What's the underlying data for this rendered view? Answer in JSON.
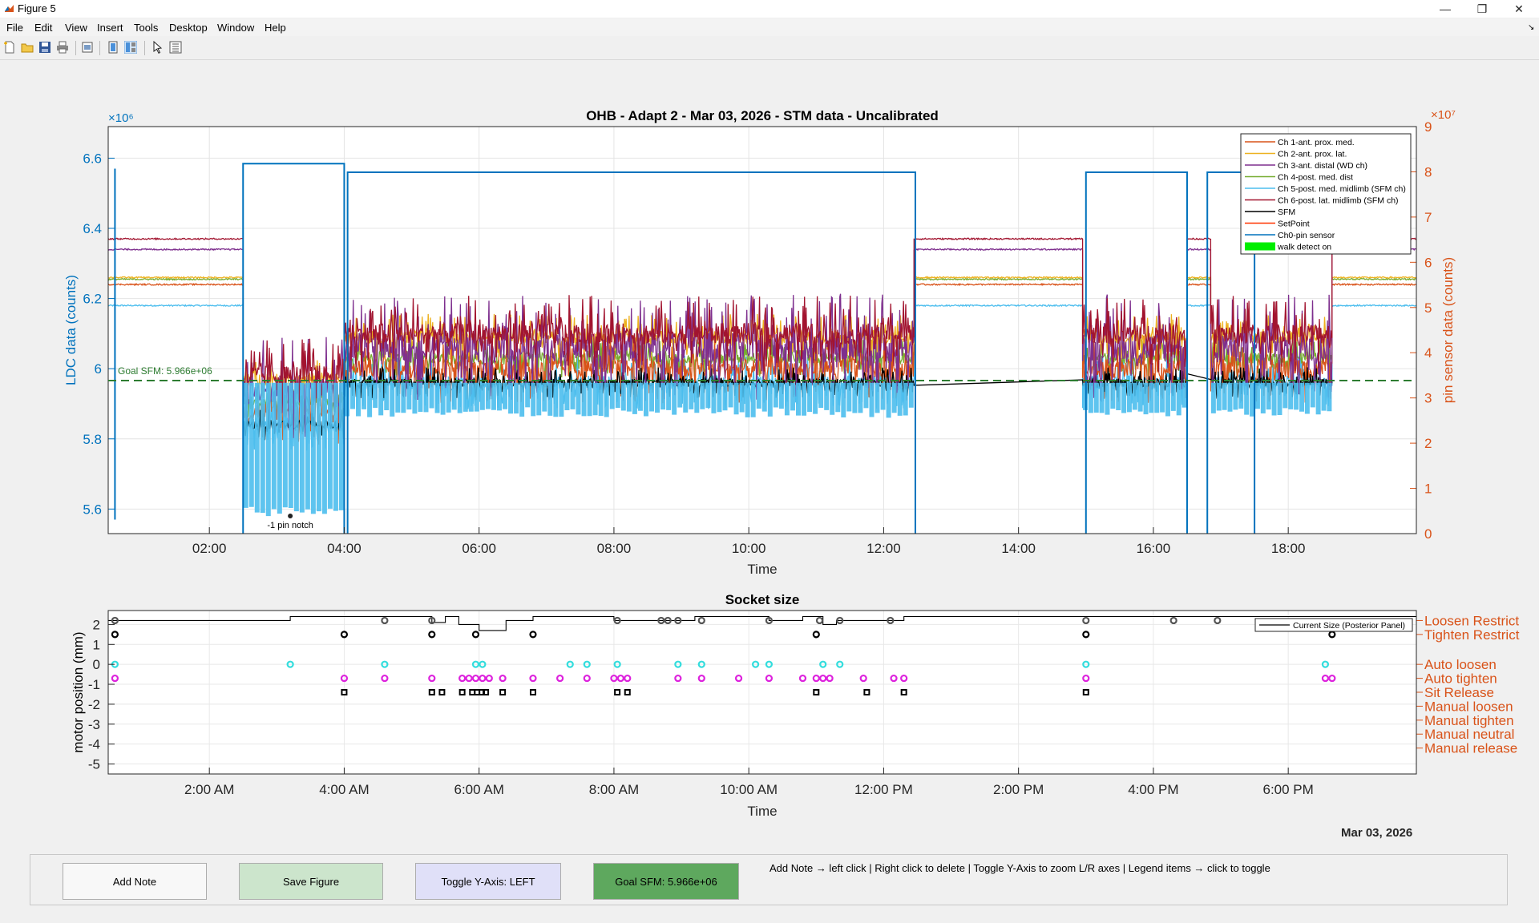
{
  "window": {
    "title": "Figure 5",
    "buttons": [
      "minimize",
      "restore",
      "close"
    ]
  },
  "menu": [
    "File",
    "Edit",
    "View",
    "Insert",
    "Tools",
    "Desktop",
    "Window",
    "Help"
  ],
  "toolbar_icons": [
    "new-figure-icon",
    "open-icon",
    "save-icon",
    "print-icon",
    "print-preview-icon",
    "hide-plot-tools-icon",
    "show-plot-tools-icon",
    "edit-plot-icon",
    "property-inspector-icon"
  ],
  "colors": {
    "ch1": "#d95319",
    "ch2": "#edb120",
    "ch3": "#7e2f8e",
    "ch4": "#77ac30",
    "ch5": "#4dbeee",
    "ch6": "#a2142f",
    "sfm": "#000000",
    "setpoint": "#ff3300",
    "ch0": "#0072bd",
    "walk": "#00ee00",
    "goal": "#2e7d32",
    "left_axis": "#0072bd",
    "right_axis": "#d95319",
    "cyan_marker": "#33dddd",
    "magenta_marker": "#dd22dd"
  },
  "chart_data": [
    {
      "type": "line",
      "title": "OHB - Adapt 2 - Mar 03, 2026 - STM data - Uncalibrated",
      "xlabel": "Time",
      "ylabel": "LDC data (counts)",
      "ylabel_right": "pin sensor data (counts)",
      "y_exponent": "×10⁶",
      "y_exponent_right": "×10⁷",
      "xlim": [
        0.5,
        19.9
      ],
      "ylim": [
        5.53,
        6.69
      ],
      "ylim_right": [
        0,
        9
      ],
      "x_ticks": [
        2,
        4,
        6,
        8,
        10,
        12,
        14,
        16,
        18
      ],
      "x_tick_labels": [
        "02:00",
        "04:00",
        "06:00",
        "08:00",
        "10:00",
        "12:00",
        "14:00",
        "16:00",
        "18:00"
      ],
      "y_ticks": [
        5.6,
        5.8,
        6,
        6.2,
        6.4,
        6.6
      ],
      "y_tick_labels": [
        "5.6",
        "5.8",
        "6",
        "6.2",
        "6.4",
        "6.6"
      ],
      "y_ticks_right": [
        0,
        1,
        2,
        3,
        4,
        5,
        6,
        7,
        8,
        9
      ],
      "grid": true,
      "legend_position": "top-right",
      "goal_line": {
        "value": 5.966,
        "label": "Goal SFM: 5.966e+06"
      },
      "annotation": {
        "text": "-1 pin notch",
        "x": 3.2
      },
      "legend": [
        "Ch 1-ant. prox. med.",
        "Ch 2-ant. prox. lat.",
        "Ch 3-ant. distal (WD ch)",
        "Ch 4-post. med. dist",
        "Ch 5-post. med. midlimb (SFM ch)",
        "Ch 6-post. lat. midlimb (SFM ch)",
        "SFM",
        "SetPoint",
        "Ch0-pin sensor",
        "walk detect on"
      ],
      "series": [
        {
          "name": "Ch 1-ant. prox. med.",
          "rest": 6.24,
          "active": 6.0,
          "spread": 0.09
        },
        {
          "name": "Ch 2-ant. prox. lat.",
          "rest": 6.26,
          "active": 6.09,
          "spread": 0.06
        },
        {
          "name": "Ch 3-ant. distal (WD ch)",
          "rest": 6.34,
          "active": 6.06,
          "spread": 0.14
        },
        {
          "name": "Ch 4-post. med. dist",
          "rest": 6.255,
          "active": 6.03,
          "spread": 0.05
        },
        {
          "name": "Ch 5-post. med. midlimb (SFM ch)",
          "rest": 6.18,
          "active": 5.96,
          "spread": 0.07
        },
        {
          "name": "Ch 6-post. lat. midlimb (SFM ch)",
          "rest": 6.37,
          "active": 6.1,
          "spread": 0.1
        },
        {
          "name": "SFM",
          "rest": null,
          "active": 5.96,
          "spread": 0.04
        },
        {
          "name": "Ch0-pin sensor",
          "levels_right": [
            {
              "x0": 2.5,
              "x1": 4.0,
              "y": 8.18
            },
            {
              "x0": 4.05,
              "x1": 12.47,
              "y": 7.99
            },
            {
              "x0": 15.0,
              "x1": 16.5,
              "y": 7.99
            },
            {
              "x0": 16.8,
              "x1": 17.5,
              "y": 7.99
            }
          ]
        }
      ],
      "segments": [
        {
          "x0": 0.5,
          "x1": 2.5,
          "state": "rest"
        },
        {
          "x0": 2.5,
          "x1": 4.0,
          "state": "active_low"
        },
        {
          "x0": 4.0,
          "x1": 12.45,
          "state": "active"
        },
        {
          "x0": 12.45,
          "x1": 14.95,
          "state": "rest"
        },
        {
          "x0": 14.95,
          "x1": 16.5,
          "state": "active"
        },
        {
          "x0": 16.5,
          "x1": 16.85,
          "state": "rest"
        },
        {
          "x0": 16.85,
          "x1": 18.65,
          "state": "active"
        },
        {
          "x0": 18.65,
          "x1": 19.9,
          "state": "rest"
        }
      ]
    },
    {
      "type": "scatter",
      "title": "Socket size",
      "xlabel": "Time",
      "ylabel": "motor position (mm)",
      "xlim": [
        0.5,
        19.9
      ],
      "ylim": [
        -5.5,
        2.7
      ],
      "x_ticks": [
        2,
        4,
        6,
        8,
        10,
        12,
        14,
        16,
        18
      ],
      "x_tick_labels": [
        "2:00 AM",
        "4:00 AM",
        "6:00 AM",
        "8:00 AM",
        "10:00 AM",
        "12:00 PM",
        "2:00 PM",
        "4:00 PM",
        "6:00 PM"
      ],
      "y_ticks": [
        2,
        1,
        0,
        -1,
        -2,
        -3,
        -4,
        -5
      ],
      "y_tick_labels": [
        "2",
        "1",
        "0",
        "-1",
        "-2",
        "-3",
        "-4",
        "-5"
      ],
      "right_labels": [
        {
          "y": 2.2,
          "text": "Loosen Restrict"
        },
        {
          "y": 1.5,
          "text": "Tighten Restrict"
        },
        {
          "y": 0,
          "text": "Auto loosen"
        },
        {
          "y": -0.7,
          "text": "Auto tighten"
        },
        {
          "y": -1.4,
          "text": "Sit Release"
        },
        {
          "y": -2.1,
          "text": "Manual loosen"
        },
        {
          "y": -2.8,
          "text": "Manual tighten"
        },
        {
          "y": -3.5,
          "text": "Manual neutral"
        },
        {
          "y": -4.2,
          "text": "Manual release"
        }
      ],
      "legend": [
        "Current Size (Posterior Panel)"
      ],
      "current_size": [
        [
          0.5,
          2.2
        ],
        [
          3.2,
          2.2
        ],
        [
          3.2,
          2.4
        ],
        [
          5.3,
          2.4
        ],
        [
          5.3,
          2.1
        ],
        [
          5.5,
          2.1
        ],
        [
          5.5,
          2.4
        ],
        [
          5.7,
          2.4
        ],
        [
          5.7,
          2.0
        ],
        [
          6.0,
          2.0
        ],
        [
          6.0,
          1.7
        ],
        [
          6.4,
          1.7
        ],
        [
          6.4,
          2.2
        ],
        [
          6.8,
          2.2
        ],
        [
          6.8,
          2.4
        ],
        [
          8.0,
          2.4
        ],
        [
          8.0,
          2.2
        ],
        [
          9.2,
          2.2
        ],
        [
          9.2,
          2.4
        ],
        [
          10.3,
          2.4
        ],
        [
          10.3,
          2.2
        ],
        [
          10.8,
          2.2
        ],
        [
          10.8,
          2.4
        ],
        [
          11.1,
          2.4
        ],
        [
          11.1,
          2.0
        ],
        [
          11.3,
          2.0
        ],
        [
          11.3,
          2.2
        ],
        [
          12.3,
          2.2
        ],
        [
          12.3,
          2.4
        ],
        [
          19.9,
          2.4
        ]
      ],
      "loosen_restrict": [
        0.6,
        4.6,
        5.3,
        8.05,
        8.7,
        8.8,
        8.95,
        9.3,
        10.3,
        11.05,
        11.35,
        12.1,
        15.0,
        16.3,
        16.95
      ],
      "tighten_restrict": [
        0.6,
        4.0,
        5.3,
        5.95,
        6.8,
        11.0,
        15.0,
        18.65
      ],
      "auto_loosen": [
        0.6,
        3.2,
        4.6,
        5.95,
        6.05,
        7.35,
        7.6,
        8.05,
        8.95,
        9.3,
        10.1,
        10.3,
        11.1,
        11.35,
        15.0,
        18.55
      ],
      "auto_tighten": [
        0.6,
        4.0,
        4.6,
        5.3,
        5.75,
        5.85,
        5.95,
        6.05,
        6.15,
        6.35,
        6.8,
        7.2,
        7.6,
        8.0,
        8.1,
        8.2,
        8.95,
        9.3,
        9.85,
        10.3,
        10.8,
        11.0,
        11.1,
        11.2,
        11.7,
        12.15,
        12.3,
        15.0,
        18.55,
        18.65
      ],
      "sit_release": [
        4.0,
        5.3,
        5.45,
        5.75,
        5.9,
        5.97,
        6.04,
        6.1,
        6.35,
        6.8,
        8.05,
        8.2,
        11.0,
        11.75,
        12.3,
        15.0
      ]
    }
  ],
  "date_label": "Mar 03, 2026",
  "panel": {
    "add_note": "Add Note",
    "save_figure": "Save Figure",
    "toggle_axis": "Toggle Y-Axis: LEFT",
    "goal_sfm": "Goal SFM: 5.966e+06",
    "help": "Add Note → left click | Right click to delete | Toggle Y-Axis to zoom L/R axes | Legend items → click to toggle"
  }
}
